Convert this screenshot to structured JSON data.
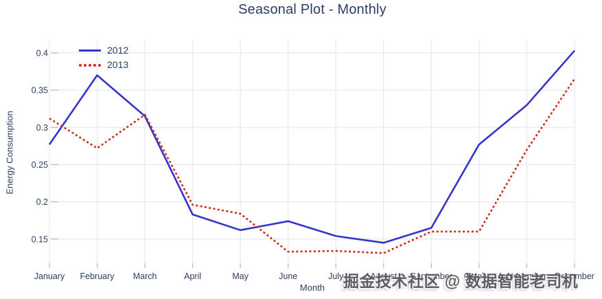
{
  "watermark": "掘金技术社区 @ 数据智能老司机",
  "chart_data": {
    "type": "line",
    "title": "Seasonal Plot - Monthly",
    "xlabel": "Month",
    "ylabel": "Energy Consumption",
    "categories": [
      "January",
      "February",
      "March",
      "April",
      "May",
      "June",
      "July",
      "August",
      "September",
      "October",
      "November",
      "December"
    ],
    "series": [
      {
        "name": "2012",
        "color": "#3335c8",
        "line_style": "solid",
        "values": [
          0.277,
          0.37,
          0.315,
          0.183,
          0.162,
          0.174,
          0.154,
          0.145,
          0.165,
          0.277,
          0.33,
          0.403
        ]
      },
      {
        "name": "2013",
        "color": "#cf2a1a",
        "line_style": "dotted",
        "values": [
          0.312,
          0.272,
          0.317,
          0.196,
          0.184,
          0.133,
          0.134,
          0.131,
          0.16,
          0.16,
          0.27,
          0.365
        ]
      }
    ],
    "yticks": [
      {
        "label": "0.15",
        "value": 0.15
      },
      {
        "label": "0.2",
        "value": 0.2
      },
      {
        "label": "0.25",
        "value": 0.25
      },
      {
        "label": "0.3",
        "value": 0.3
      },
      {
        "label": "0.35",
        "value": 0.35
      },
      {
        "label": "0.4",
        "value": 0.4
      }
    ],
    "ylim": [
      0.111,
      0.4175
    ],
    "grid": true,
    "legend_position": "top-left-inside",
    "background_color": "#ffffff",
    "gridline_color": "#e9eaf2",
    "tick_color": "#b7bac6",
    "text_color": "#2a3f5f"
  }
}
